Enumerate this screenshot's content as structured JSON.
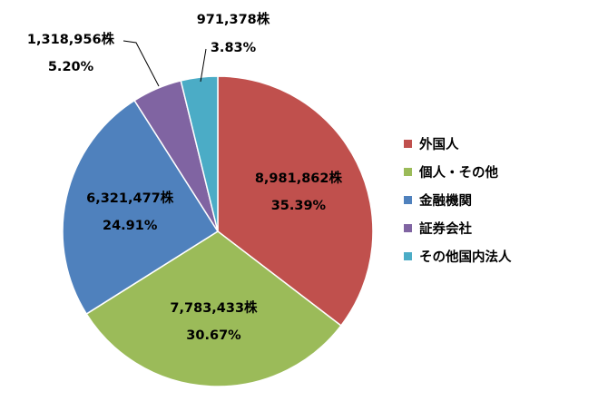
{
  "chart_data": {
    "type": "pie",
    "unit": "株",
    "start_angle_deg": 0,
    "direction": "clockwise",
    "legend_position": "right",
    "slices": [
      {
        "name": "外国人",
        "value": 8981862,
        "value_label": "8,981,862株",
        "percent": 35.39,
        "percent_label": "35.39%",
        "color": "#C0504D"
      },
      {
        "name": "個人・その他",
        "value": 7783433,
        "value_label": "7,783,433株",
        "percent": 30.67,
        "percent_label": "30.67%",
        "color": "#9BBB59"
      },
      {
        "name": "金融機関",
        "value": 6321477,
        "value_label": "6,321,477株",
        "percent": 24.91,
        "percent_label": "24.91%",
        "color": "#4F81BD"
      },
      {
        "name": "証券会社",
        "value": 1318956,
        "value_label": "1,318,956株",
        "percent": 5.2,
        "percent_label": "5.20%",
        "color": "#8064A2"
      },
      {
        "name": "その他国内法人",
        "value": 971378,
        "value_label": "971,378株",
        "percent": 3.83,
        "percent_label": "3.83%",
        "color": "#4BACC6"
      }
    ]
  }
}
